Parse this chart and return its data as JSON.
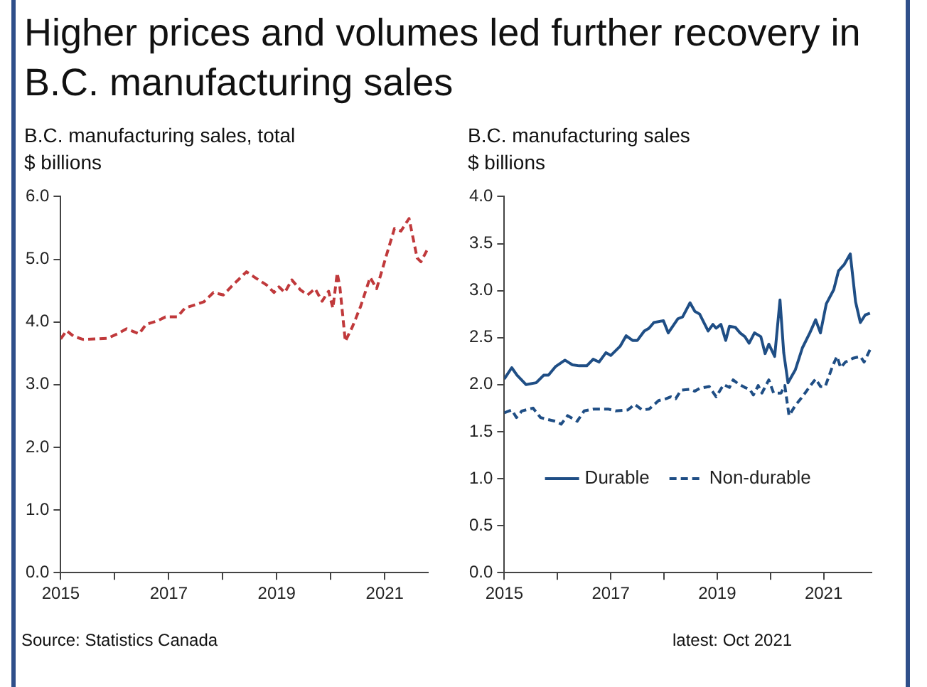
{
  "chart_data": [
    {
      "type": "line",
      "title": "Higher prices and volumes led further recovery in B.C. manufacturing sales",
      "subtitle": "B.C. manufacturing sales, total",
      "ylabel": "$ billions",
      "xlim": [
        2015,
        2021.8
      ],
      "xticks": [
        2015,
        {
          "value": 2016,
          "label": null
        },
        2017,
        {
          "value": 2018,
          "label": null
        },
        2019,
        {
          "value": 2020,
          "label": null
        },
        2021
      ],
      "ylim": [
        0,
        6
      ],
      "yticks": [
        {
          "value": 0,
          "label": "0.0"
        },
        {
          "value": 1,
          "label": "1.0"
        },
        {
          "value": 2,
          "label": "2.0"
        },
        {
          "value": 3,
          "label": "3.0"
        },
        {
          "value": 4,
          "label": "4.0"
        },
        {
          "value": 5,
          "label": "5.0"
        },
        {
          "value": 6,
          "label": "6.0"
        }
      ],
      "grid": false,
      "legend": false,
      "line_style": "dashed",
      "series": [
        {
          "color": "#c0393b",
          "x": [
            2015.0,
            2015.11,
            2015.24,
            2015.42,
            2015.64,
            2015.87,
            2016.05,
            2016.22,
            2016.45,
            2016.58,
            2016.8,
            2016.94,
            2017.16,
            2017.3,
            2017.65,
            2017.83,
            2018.01,
            2018.19,
            2018.44,
            2018.63,
            2018.81,
            2018.95,
            2019.04,
            2019.15,
            2019.28,
            2019.44,
            2019.57,
            2019.71,
            2019.84,
            2019.96,
            2020.04,
            2020.12,
            2020.17,
            2020.27,
            2020.4,
            2020.55,
            2020.73,
            2020.85,
            2021.03,
            2021.18,
            2021.3,
            2021.45,
            2021.6,
            2021.67,
            2021.78
          ],
          "values": [
            3.73,
            3.86,
            3.77,
            3.72,
            3.73,
            3.74,
            3.81,
            3.89,
            3.81,
            3.96,
            4.02,
            4.08,
            4.08,
            4.22,
            4.32,
            4.47,
            4.43,
            4.59,
            4.8,
            4.69,
            4.59,
            4.47,
            4.56,
            4.47,
            4.67,
            4.51,
            4.43,
            4.53,
            4.33,
            4.49,
            4.22,
            4.78,
            4.55,
            3.69,
            3.92,
            4.24,
            4.71,
            4.53,
            5.06,
            5.49,
            5.45,
            5.65,
            5.02,
            4.96,
            5.14
          ]
        }
      ],
      "annotations": [
        "Source: Statistics Canada"
      ]
    },
    {
      "type": "line",
      "subtitle": "B.C. manufacturing sales",
      "ylabel": "$ billions",
      "xlim": [
        2015,
        2021.9
      ],
      "xticks": [
        2015,
        {
          "value": 2016,
          "label": null
        },
        2017,
        {
          "value": 2018,
          "label": null
        },
        2019,
        {
          "value": 2020,
          "label": null
        },
        2021
      ],
      "ylim": [
        0,
        4
      ],
      "yticks": [
        {
          "value": 0,
          "label": "0.0"
        },
        0.5,
        {
          "value": 1,
          "label": "1.0"
        },
        1.5,
        {
          "value": 2,
          "label": "2.0"
        },
        2.5,
        {
          "value": 3,
          "label": "3.0"
        },
        3.5,
        {
          "value": 4,
          "label": "4.0"
        }
      ],
      "grid": false,
      "legend": "center",
      "series": [
        {
          "name": "Durable",
          "color": "#1f4e85",
          "line_style": "solid",
          "x": [
            2015.0,
            2015.14,
            2015.24,
            2015.41,
            2015.6,
            2015.74,
            2015.83,
            2015.96,
            2016.14,
            2016.28,
            2016.41,
            2016.55,
            2016.67,
            2016.78,
            2016.91,
            2017.0,
            2017.18,
            2017.29,
            2017.41,
            2017.5,
            2017.63,
            2017.72,
            2017.81,
            2017.99,
            2018.08,
            2018.26,
            2018.35,
            2018.49,
            2018.58,
            2018.67,
            2018.83,
            2018.92,
            2018.98,
            2019.07,
            2019.16,
            2019.23,
            2019.34,
            2019.43,
            2019.52,
            2019.6,
            2019.7,
            2019.82,
            2019.9,
            2019.97,
            2020.08,
            2020.18,
            2020.25,
            2020.33,
            2020.47,
            2020.6,
            2020.74,
            2020.85,
            2020.94,
            2021.05,
            2021.19,
            2021.28,
            2021.39,
            2021.5,
            2021.6,
            2021.69,
            2021.78,
            2021.87
          ],
          "values": [
            2.06,
            2.18,
            2.1,
            2.0,
            2.02,
            2.1,
            2.1,
            2.19,
            2.26,
            2.21,
            2.2,
            2.2,
            2.27,
            2.24,
            2.34,
            2.31,
            2.41,
            2.52,
            2.47,
            2.47,
            2.57,
            2.6,
            2.66,
            2.68,
            2.55,
            2.7,
            2.72,
            2.87,
            2.78,
            2.75,
            2.57,
            2.64,
            2.6,
            2.64,
            2.47,
            2.62,
            2.61,
            2.55,
            2.51,
            2.44,
            2.55,
            2.51,
            2.33,
            2.43,
            2.3,
            2.9,
            2.34,
            2.02,
            2.16,
            2.39,
            2.55,
            2.69,
            2.55,
            2.86,
            3.01,
            3.21,
            3.28,
            3.39,
            2.88,
            2.66,
            2.74,
            2.76
          ]
        },
        {
          "name": "Non-durable",
          "color": "#1f4e85",
          "line_style": "dashed",
          "x": [
            2015.0,
            2015.14,
            2015.23,
            2015.33,
            2015.47,
            2015.54,
            2015.68,
            2015.81,
            2015.96,
            2016.07,
            2016.19,
            2016.37,
            2016.5,
            2016.68,
            2016.95,
            2017.09,
            2017.32,
            2017.45,
            2017.59,
            2017.72,
            2017.9,
            2018.04,
            2018.13,
            2018.22,
            2018.32,
            2018.49,
            2018.58,
            2018.67,
            2018.85,
            2018.98,
            2019.12,
            2019.23,
            2019.3,
            2019.39,
            2019.52,
            2019.61,
            2019.68,
            2019.77,
            2019.84,
            2019.97,
            2020.06,
            2020.2,
            2020.27,
            2020.35,
            2020.47,
            2020.6,
            2020.74,
            2020.85,
            2020.94,
            2021.03,
            2021.17,
            2021.25,
            2021.32,
            2021.41,
            2021.55,
            2021.69,
            2021.76,
            2021.87
          ],
          "values": [
            1.7,
            1.73,
            1.65,
            1.72,
            1.74,
            1.75,
            1.65,
            1.63,
            1.61,
            1.58,
            1.67,
            1.61,
            1.72,
            1.74,
            1.74,
            1.72,
            1.73,
            1.79,
            1.73,
            1.74,
            1.83,
            1.85,
            1.87,
            1.85,
            1.94,
            1.95,
            1.93,
            1.96,
            1.98,
            1.87,
            2.0,
            1.97,
            2.05,
            2.01,
            1.97,
            1.95,
            1.89,
            1.99,
            1.91,
            2.05,
            1.91,
            1.91,
            1.99,
            1.67,
            1.78,
            1.87,
            1.98,
            2.06,
            1.98,
            1.98,
            2.2,
            2.3,
            2.18,
            2.24,
            2.28,
            2.3,
            2.24,
            2.37
          ]
        }
      ],
      "annotations": [
        "latest: Oct 2021"
      ]
    }
  ]
}
